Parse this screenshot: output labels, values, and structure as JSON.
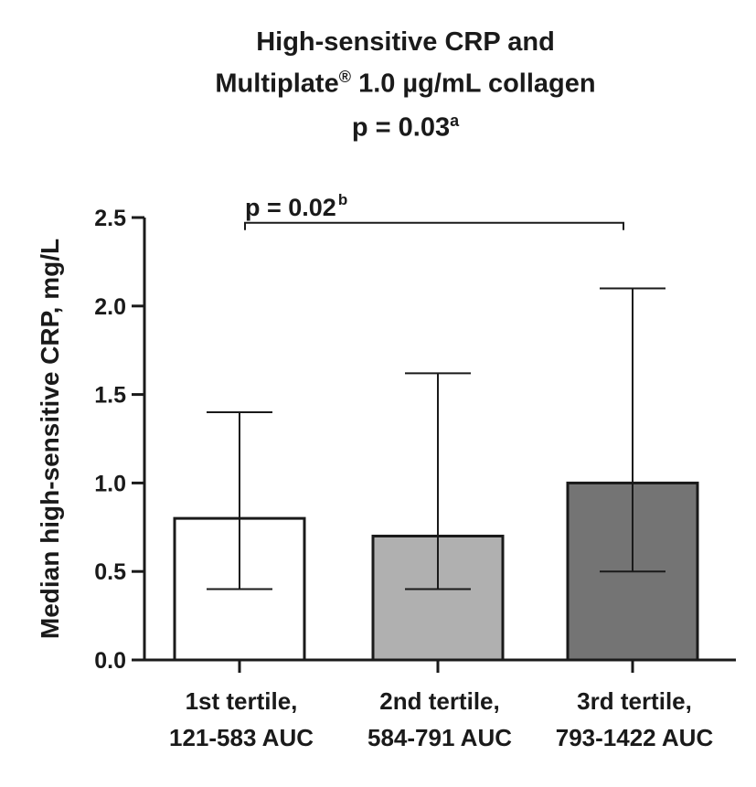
{
  "chart_data": {
    "type": "bar",
    "title_lines": [
      "High-sensitive CRP and",
      "Multiplate",
      "1.0 µg/mL collagen",
      "p = 0.03"
    ],
    "title_marks": {
      "registered": "®",
      "sup_a": "a"
    },
    "categories": [
      [
        "1st tertile,",
        "121-583 AUC"
      ],
      [
        "2nd tertile,",
        "584-791 AUC"
      ],
      [
        "3rd tertile,",
        "793-1422 AUC"
      ]
    ],
    "values": [
      0.8,
      0.7,
      1.0
    ],
    "error_low": [
      0.4,
      0.4,
      0.5
    ],
    "error_high": [
      1.4,
      1.62,
      2.1
    ],
    "bar_colors": [
      "#ffffff",
      "#b0b0b0",
      "#747474"
    ],
    "ylabel": "Median high-sensitive CRP, mg/L",
    "xlabel": "",
    "ylim": [
      0,
      2.5
    ],
    "yticks": [
      0.0,
      0.5,
      1.0,
      1.5,
      2.0,
      2.5
    ],
    "ytick_labels": [
      "0.0",
      "0.5",
      "1.0",
      "1.5",
      "2.0",
      "2.5"
    ],
    "annotation": {
      "text": "p = 0.02",
      "sup": "b",
      "from_category": 0,
      "to_category": 2,
      "y": 2.47
    },
    "grid": false
  }
}
